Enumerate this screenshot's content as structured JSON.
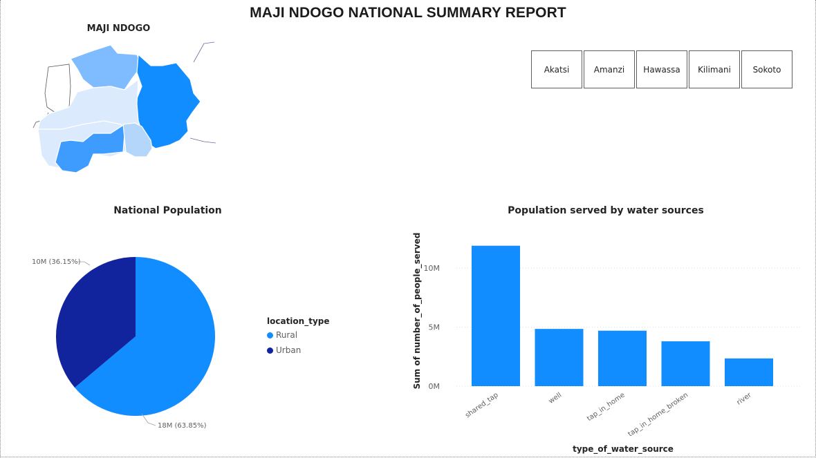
{
  "report": {
    "title": "MAJI NDOGO NATIONAL SUMMARY REPORT"
  },
  "map": {
    "title": "MAJI NDOGO"
  },
  "slicer": {
    "items": [
      "Akatsi",
      "Amanzi",
      "Hawassa",
      "Kilimani",
      "Sokoto"
    ]
  },
  "colors": {
    "rural": "#118dff",
    "urban": "#12239e",
    "bar": "#118dff"
  },
  "pie": {
    "title": "National Population",
    "legend_title": "location_type",
    "legend": [
      {
        "label": "Rural",
        "color": "#118dff"
      },
      {
        "label": "Urban",
        "color": "#12239e"
      }
    ],
    "labels": {
      "rural": "18M (63.85%)",
      "urban": "10M (36.15%)"
    }
  },
  "bar": {
    "title": "Population served by water sources",
    "xlabel": "type_of_water_source",
    "ylabel": "Sum of number_of_people_served"
  },
  "chart_data": [
    {
      "type": "pie",
      "title": "National Population",
      "legend_title": "location_type",
      "slices": [
        {
          "name": "Rural",
          "value": 18,
          "percent": 63.85,
          "label": "18M (63.85%)"
        },
        {
          "name": "Urban",
          "value": 10,
          "percent": 36.15,
          "label": "10M (36.15%)"
        }
      ],
      "legend_placement": "right"
    },
    {
      "type": "bar",
      "title": "Population served by water sources",
      "xlabel": "type_of_water_source",
      "ylabel": "Sum of number_of_people_served",
      "categories": [
        "shared_tap",
        "well",
        "tap_in_home",
        "tap_in_home_broken",
        "river"
      ],
      "values": [
        11900000,
        4850000,
        4700000,
        3800000,
        2350000
      ],
      "ylim": [
        0,
        12000000
      ],
      "yticks": [
        0,
        5000000,
        10000000
      ],
      "ytick_labels": [
        "0M",
        "5M",
        "10M"
      ],
      "grid": true
    }
  ]
}
